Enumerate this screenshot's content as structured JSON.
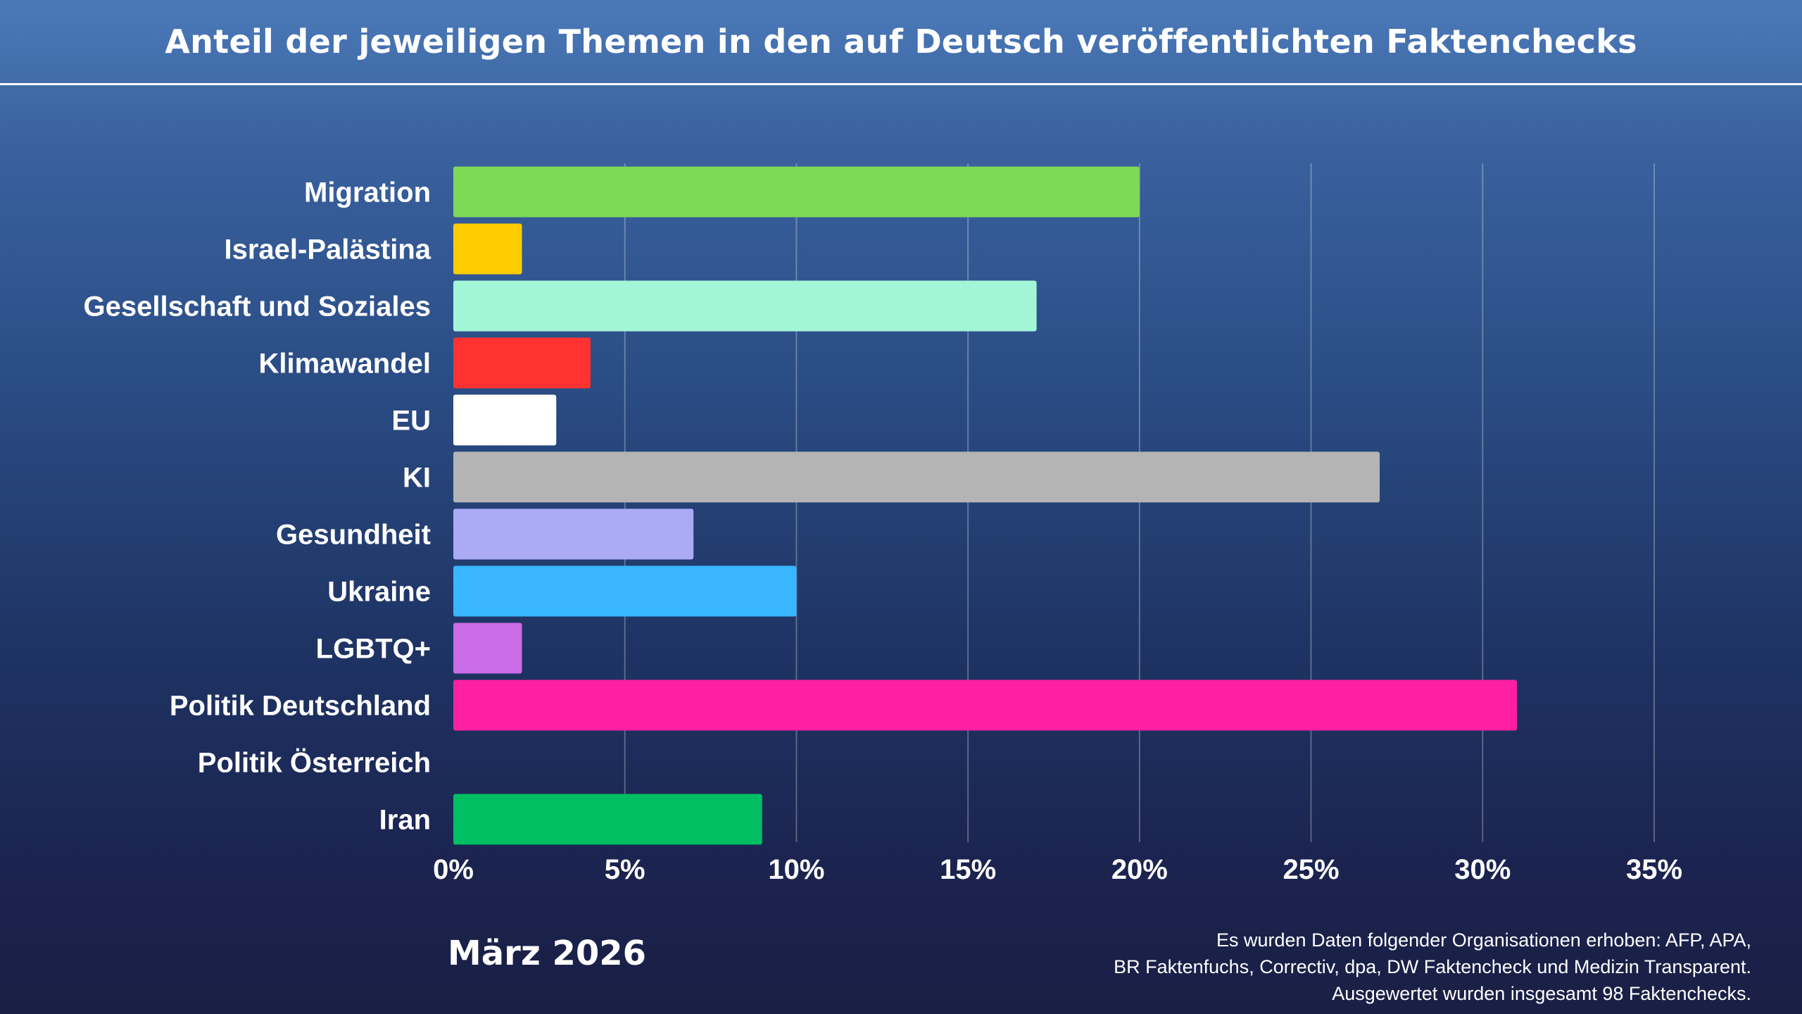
{
  "chart_data": {
    "type": "bar",
    "orientation": "horizontal",
    "title": "Anteil der jeweiligen Themen in den auf Deutsch veröffentlichten Faktenchecks",
    "categories": [
      "Migration",
      "Israel-Palästina",
      "Gesellschaft und Soziales",
      "Klimawandel",
      "EU",
      "KI",
      "Gesundheit",
      "Ukraine",
      "LGBTQ+",
      "Politik Deutschland",
      "Politik Österreich",
      "Iran"
    ],
    "values": [
      20,
      2,
      17,
      4,
      3,
      27,
      7,
      10,
      2,
      31,
      0,
      9
    ],
    "colors": [
      "#7ed957",
      "#ffcc00",
      "#a3f5d8",
      "#ff3131",
      "#ffffff",
      "#b4b4b4",
      "#aaaaf5",
      "#38b6ff",
      "#cb6ce6",
      "#ff1fa3",
      "#ffffff",
      "#00bf63"
    ],
    "xlim": [
      0,
      35
    ],
    "xticks": [
      0,
      5,
      10,
      15,
      20,
      25,
      30,
      35
    ],
    "xtick_labels": [
      "0%",
      "5%",
      "10%",
      "15%",
      "20%",
      "25%",
      "30%",
      "35%"
    ],
    "xlabel": "",
    "ylabel": "",
    "grid": "vertical"
  },
  "footer": {
    "date": "März 2026",
    "note_lines": [
      "Es wurden Daten folgender Organisationen erhoben: AFP, APA,",
      "BR Faktenfuchs, Correctiv, dpa, DW Faktencheck und Medizin Transparent.",
      "Ausgewertet wurden insgesamt 98 Faktenchecks."
    ]
  }
}
